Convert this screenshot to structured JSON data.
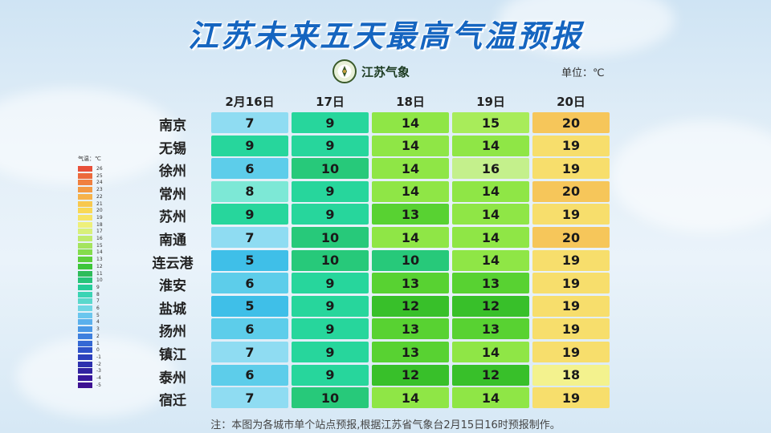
{
  "title": "江苏未来五天最高气温预报",
  "logo_text": "江苏气象",
  "unit": "单位：℃",
  "note": "注：本图为各城市单个站点预报,根据江苏省气象台2月15日16时预报制作。",
  "legend": {
    "title": "气温：℃",
    "labels": [
      "26",
      "25",
      "24",
      "23",
      "22",
      "21",
      "20",
      "19",
      "18",
      "17",
      "16",
      "15",
      "14",
      "13",
      "12",
      "11",
      "10",
      "9",
      "8",
      "7",
      "6",
      "5",
      "4",
      "3",
      "2",
      "1",
      "0",
      "-1",
      "-2",
      "-3",
      "-4",
      "-5"
    ],
    "colors": [
      "#e8503a",
      "#ec6a3c",
      "#f08040",
      "#f39a44",
      "#f6b24a",
      "#f8c84e",
      "#f9d855",
      "#f6e465",
      "#eef07a",
      "#d8f07a",
      "#bfeb6e",
      "#a4e45e",
      "#84dc4c",
      "#5ccf3c",
      "#3dc63a",
      "#2ebc5a",
      "#26c47a",
      "#24cc98",
      "#3ad4b4",
      "#5ad8cc",
      "#70d6e4",
      "#6ac6ee",
      "#5ab0ec",
      "#4a98e6",
      "#3e80de",
      "#3468d4",
      "#2e52c8",
      "#2c40bc",
      "#2c30ae",
      "#3022a0",
      "#36179a",
      "#3d1292"
    ]
  },
  "chart_data": {
    "type": "table",
    "title": "江苏未来五天最高气温预报",
    "columns": [
      "2月16日",
      "17日",
      "18日",
      "19日",
      "20日"
    ],
    "rows": [
      {
        "city": "南京",
        "values": [
          7,
          9,
          14,
          15,
          20
        ]
      },
      {
        "city": "无锡",
        "values": [
          9,
          9,
          14,
          14,
          19
        ]
      },
      {
        "city": "徐州",
        "values": [
          6,
          10,
          14,
          16,
          19
        ]
      },
      {
        "city": "常州",
        "values": [
          8,
          9,
          14,
          14,
          20
        ]
      },
      {
        "city": "苏州",
        "values": [
          9,
          9,
          13,
          14,
          19
        ]
      },
      {
        "city": "南通",
        "values": [
          7,
          10,
          14,
          14,
          20
        ]
      },
      {
        "city": "连云港",
        "values": [
          5,
          10,
          10,
          14,
          19
        ]
      },
      {
        "city": "淮安",
        "values": [
          6,
          9,
          13,
          13,
          19
        ]
      },
      {
        "city": "盐城",
        "values": [
          5,
          9,
          12,
          12,
          19
        ]
      },
      {
        "city": "扬州",
        "values": [
          6,
          9,
          13,
          13,
          19
        ]
      },
      {
        "city": "镇江",
        "values": [
          7,
          9,
          13,
          14,
          19
        ]
      },
      {
        "city": "泰州",
        "values": [
          6,
          9,
          12,
          12,
          18
        ]
      },
      {
        "city": "宿迁",
        "values": [
          7,
          10,
          14,
          14,
          19
        ]
      }
    ],
    "unit": "℃",
    "color_scale": {
      "5": "#3fbfe8",
      "6": "#5dcdea",
      "7": "#8fdcf2",
      "8": "#7de8d6",
      "9": "#27d69c",
      "10": "#27c97a",
      "12": "#38c02a",
      "13": "#58d232",
      "14": "#8fe646",
      "15": "#a8ec5a",
      "16": "#c4f08c",
      "18": "#f3f28e",
      "19": "#f7de6c",
      "20": "#f6c65a"
    }
  }
}
